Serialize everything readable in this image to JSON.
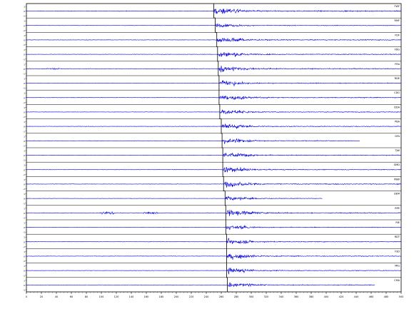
{
  "chart_data": {
    "type": "line",
    "title": "",
    "xlabel": "",
    "ylabel": "",
    "xlim": [
      0,
      500
    ],
    "x_ticks": [
      0,
      20,
      40,
      60,
      80,
      100,
      120,
      140,
      160,
      180,
      200,
      220,
      240,
      260,
      280,
      300,
      320,
      340,
      360,
      380,
      400,
      420,
      440,
      460,
      480,
      500
    ],
    "grid": false,
    "trace_color": "#0000dd",
    "pick_color": "#000000",
    "trace_ylim": [
      -1,
      1
    ],
    "trace_y_ticks": [
      "1",
      "0",
      "-1"
    ],
    "traces": [
      {
        "station": "FWF",
        "arrival": 250,
        "amp": 1.0,
        "end": 500
      },
      {
        "station": "RMF",
        "arrival": 252,
        "amp": 0.55,
        "end": 500
      },
      {
        "station": "FDF",
        "arrival": 254,
        "amp": 0.8,
        "end": 500
      },
      {
        "station": "FDG",
        "arrival": 255,
        "amp": 0.75,
        "end": 500
      },
      {
        "station": "FRA",
        "arrival": 256,
        "amp": 0.85,
        "end": 500
      },
      {
        "station": "RDE",
        "arrival": 257,
        "amp": 0.7,
        "end": 500
      },
      {
        "station": "CDG",
        "arrival": 257,
        "amp": 0.8,
        "end": 500
      },
      {
        "station": "DDA",
        "arrival": 258,
        "amp": 0.7,
        "end": 500
      },
      {
        "station": "PBA",
        "arrival": 260,
        "amp": 0.75,
        "end": 500
      },
      {
        "station": "GFA",
        "arrival": 261,
        "amp": 0.7,
        "end": 445
      },
      {
        "station": "TJW",
        "arrival": 262,
        "amp": 0.75,
        "end": 500
      },
      {
        "station": "GMD",
        "arrival": 262,
        "amp": 0.7,
        "end": 500
      },
      {
        "station": "PBW",
        "arrival": 263,
        "amp": 0.8,
        "end": 500
      },
      {
        "station": "DEM",
        "arrival": 265,
        "amp": 0.55,
        "end": 395
      },
      {
        "station": "RPE",
        "arrival": 266,
        "amp": 0.85,
        "end": 500
      },
      {
        "station": "RIE",
        "arrival": 266,
        "amp": 0.6,
        "end": 500
      },
      {
        "station": "RDT",
        "arrival": 267,
        "amp": 0.7,
        "end": 500
      },
      {
        "station": "FSD",
        "arrival": 267,
        "amp": 0.8,
        "end": 500
      },
      {
        "station": "MIG",
        "arrival": 267,
        "amp": 0.65,
        "end": 500
      },
      {
        "station": "CMA",
        "arrival": 268,
        "amp": 0.7,
        "end": 465
      }
    ]
  }
}
